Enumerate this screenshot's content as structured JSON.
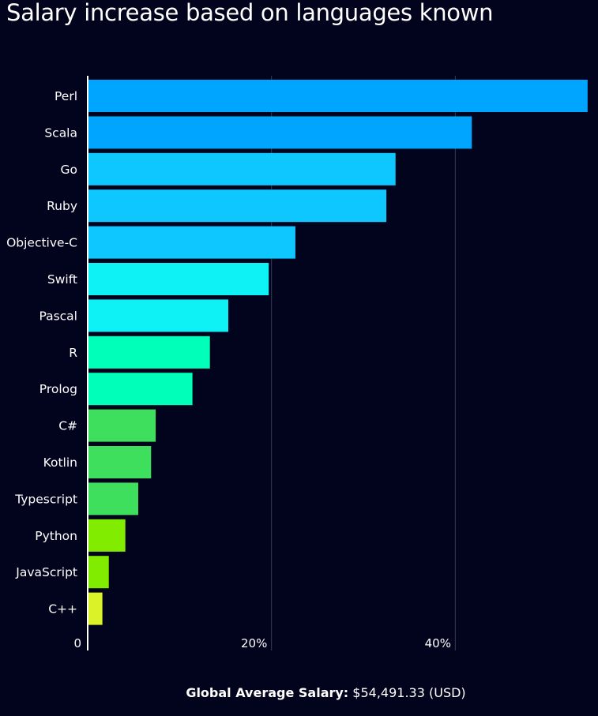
{
  "chart_data": {
    "type": "bar",
    "orientation": "horizontal",
    "title": "Salary increase based on languages known",
    "categories": [
      "Perl",
      "Scala",
      "Go",
      "Ruby",
      "Objective-C",
      "Swift",
      "Pascal",
      "R",
      "Prolog",
      "C#",
      "Kotlin",
      "Typescript",
      "Python",
      "JavaScript",
      "C++"
    ],
    "values": [
      54.4,
      41.8,
      33.5,
      32.5,
      22.6,
      19.7,
      15.3,
      13.3,
      11.4,
      7.4,
      6.9,
      5.5,
      4.1,
      2.3,
      1.6
    ],
    "colors": [
      "#00a5ff",
      "#00a5ff",
      "#0fc7ff",
      "#0fc7ff",
      "#0fc7ff",
      "#0ff2f5",
      "#0ff2f5",
      "#00ffb8",
      "#00ffb8",
      "#3ddf5c",
      "#3ddf5c",
      "#3ddf5c",
      "#82ec00",
      "#82ec00",
      "#dbf229"
    ],
    "xlim": [
      0,
      54.5
    ],
    "xticks": [
      0,
      20,
      40
    ],
    "xtick_labels": [
      "0",
      "20%",
      "40%"
    ],
    "grid": true,
    "xlabel": "",
    "ylabel": ""
  },
  "footer": {
    "label": "Global Average Salary:",
    "value": "$54,491.33 (USD)"
  },
  "colors": {
    "background": "#02031c",
    "gridline": "#3a3c55",
    "axis": "#ffffff",
    "text": "#ffffff"
  }
}
